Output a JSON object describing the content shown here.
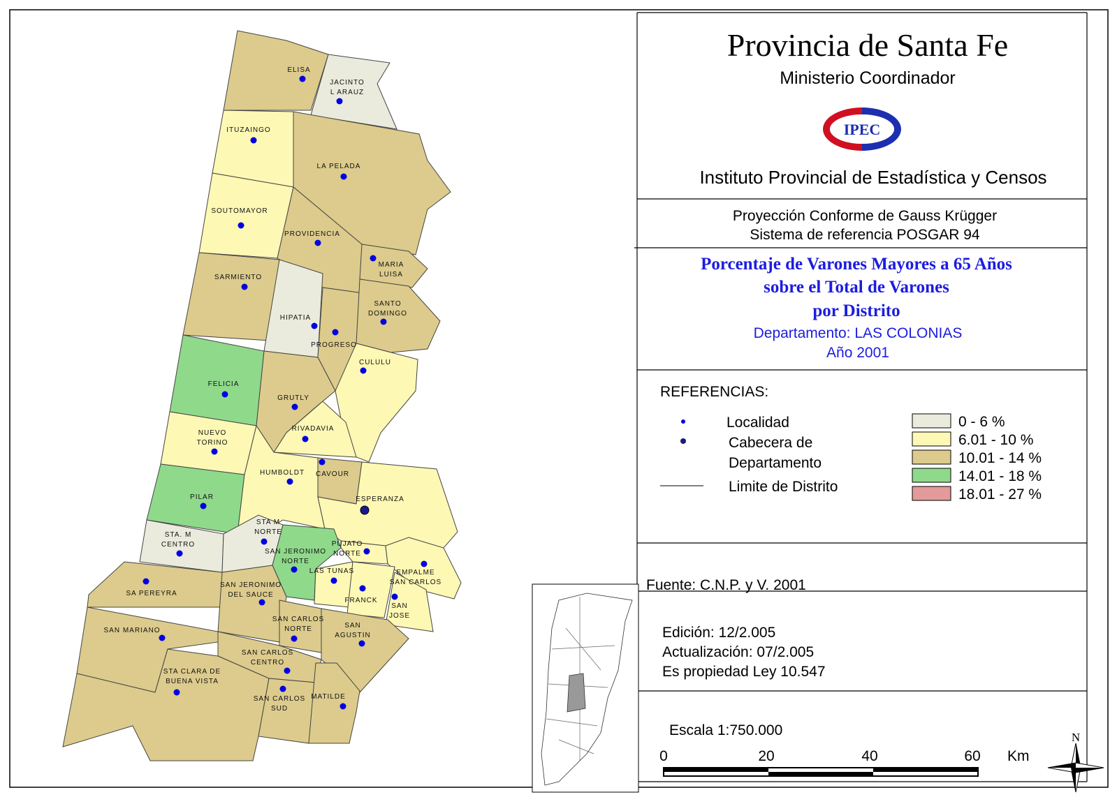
{
  "header": {
    "title": "Provincia de Santa Fe",
    "subtitle": "Ministerio Coordinador",
    "logo": "IPEC",
    "institute": "Instituto Provincial de Estadística y Censos"
  },
  "projection": [
    "Proyección Conforme de Gauss Krügger",
    "Sistema de referencia POSGAR 94"
  ],
  "map_title": {
    "lines": [
      "Porcentaje de Varones Mayores a 65 Años",
      "sobre el Total de Varones",
      "por Distrito"
    ],
    "department": "Departamento:  LAS COLONIAS",
    "year": "Año 2001"
  },
  "legend": {
    "title": "REFERENCIAS:",
    "symbols": [
      [
        "Localidad"
      ],
      [
        "Cabecera de",
        "Departamento"
      ],
      [
        "Limite de Distrito"
      ]
    ],
    "classes": [
      {
        "label": "0 - 6 %",
        "color": "#ebebdd"
      },
      {
        "label": "6.01 - 10 %",
        "color": "#fdf8b4"
      },
      {
        "label": "10.01 - 14 %",
        "color": "#dccb8c"
      },
      {
        "label": "14.01 - 18 %",
        "color": "#8fd98b"
      },
      {
        "label": "18.01 - 27 %",
        "color": "#e49a9a"
      }
    ]
  },
  "source": "Fuente:  C.N.P. y V. 2001",
  "edition": [
    "Edición:  12/2.005",
    "Actualización:  07/2.005",
    "Es propiedad Ley 10.547"
  ],
  "scale": {
    "title": "Escala 1:750.000",
    "labels": [
      "0",
      "20",
      "40",
      "60",
      "Km"
    ]
  },
  "north": "N",
  "districts": [
    {
      "name": [
        "ELISA"
      ],
      "class": 2
    },
    {
      "name": [
        "JACINTO",
        "L ARAUZ"
      ],
      "class": 0
    },
    {
      "name": [
        "ITUZAINGO"
      ],
      "class": 1
    },
    {
      "name": [
        "LA PELADA"
      ],
      "class": 2
    },
    {
      "name": [
        "SOUTOMAYOR"
      ],
      "class": 1
    },
    {
      "name": [
        "PROVIDENCIA"
      ],
      "class": 2
    },
    {
      "name": [
        "MARIA",
        "LUISA"
      ],
      "class": 2
    },
    {
      "name": [
        "SARMIENTO"
      ],
      "class": 2
    },
    {
      "name": [
        "HIPATIA"
      ],
      "class": 0
    },
    {
      "name": [
        "PROGRESO"
      ],
      "class": 2
    },
    {
      "name": [
        "SANTO",
        "DOMINGO"
      ],
      "class": 2
    },
    {
      "name": [
        "CULULU"
      ],
      "class": 1
    },
    {
      "name": [
        "FELICIA"
      ],
      "class": 3
    },
    {
      "name": [
        "GRUTLY"
      ],
      "class": 2
    },
    {
      "name": [
        "RIVADAVIA"
      ],
      "class": 1
    },
    {
      "name": [
        "NUEVO",
        "TORINO"
      ],
      "class": 1
    },
    {
      "name": [
        "PILAR"
      ],
      "class": 3
    },
    {
      "name": [
        "HUMBOLDT"
      ],
      "class": 1
    },
    {
      "name": [
        "CAVOUR"
      ],
      "class": 2
    },
    {
      "name": [
        "ESPERANZA"
      ],
      "class": 1,
      "seat": true
    },
    {
      "name": [
        "STA. M",
        "CENTRO"
      ],
      "class": 0
    },
    {
      "name": [
        "STA M",
        "NORTE"
      ],
      "class": 0
    },
    {
      "name": [
        "SAN JERONIMO",
        "NORTE"
      ],
      "class": 3
    },
    {
      "name": [
        "PUJATO",
        "NORTE"
      ],
      "class": 1
    },
    {
      "name": [
        "EMPALME",
        "SAN CARLOS"
      ],
      "class": 1
    },
    {
      "name": [
        "LAS TUNAS"
      ],
      "class": 1
    },
    {
      "name": [
        "FRANCK"
      ],
      "class": 1
    },
    {
      "name": [
        "SAN",
        "JOSE"
      ],
      "class": 1
    },
    {
      "name": [
        "SA PEREYRA"
      ],
      "class": 2
    },
    {
      "name": [
        "SAN JERONIMO",
        "DEL SAUCE"
      ],
      "class": 2
    },
    {
      "name": [
        "SAN MARIANO"
      ],
      "class": 2
    },
    {
      "name": [
        "SAN CARLOS",
        "NORTE"
      ],
      "class": 2
    },
    {
      "name": [
        "SAN",
        "AGUSTIN"
      ],
      "class": 2
    },
    {
      "name": [
        "SAN CARLOS",
        "CENTRO"
      ],
      "class": 2
    },
    {
      "name": [
        "STA CLARA DE",
        "BUENA VISTA"
      ],
      "class": 2
    },
    {
      "name": [
        "SAN CARLOS",
        "SUD"
      ],
      "class": 2
    },
    {
      "name": [
        "MATILDE"
      ],
      "class": 2
    }
  ]
}
